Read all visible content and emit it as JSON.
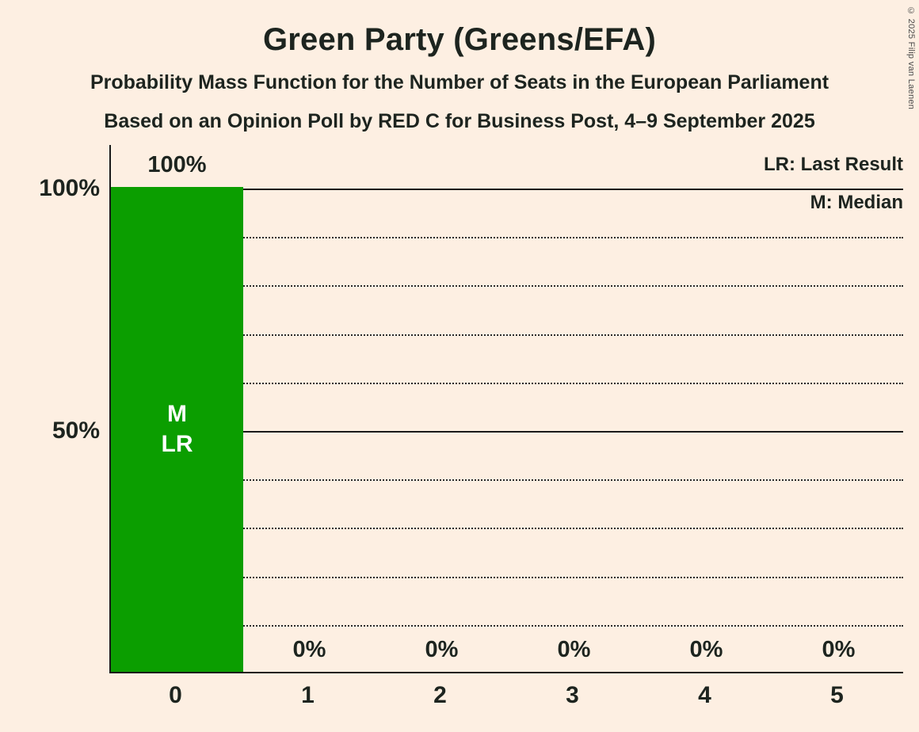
{
  "chart_data": {
    "type": "bar",
    "title": "Green Party (Greens/EFA)",
    "subtitle1": "Probability Mass Function for the Number of Seats in the European Parliament",
    "subtitle2": "Based on an Opinion Poll by RED C for Business Post, 4–9 September 2025",
    "categories": [
      "0",
      "1",
      "2",
      "3",
      "4",
      "5"
    ],
    "values": [
      100,
      0,
      0,
      0,
      0,
      0
    ],
    "value_labels": [
      "100%",
      "0%",
      "0%",
      "0%",
      "0%",
      "0%"
    ],
    "bar_annotations": [
      [
        "M",
        "LR"
      ],
      [],
      [],
      [],
      [],
      []
    ],
    "xlabel": "",
    "ylabel": "",
    "ylim": [
      0,
      100
    ],
    "yticks": [
      {
        "value": 100,
        "label": "100%"
      },
      {
        "value": 50,
        "label": "50%"
      }
    ],
    "grid": {
      "minor_step": 10,
      "solid_levels": [
        50,
        100
      ],
      "legend_position": "top-right"
    },
    "legend": [
      "LR: Last Result",
      "M: Median"
    ],
    "colors": {
      "bar": "#0b9e00",
      "background": "#fdefe2",
      "text": "#1d241f",
      "bar_text": "#ffffff"
    },
    "copyright": "© 2025 Filip van Laenen"
  }
}
